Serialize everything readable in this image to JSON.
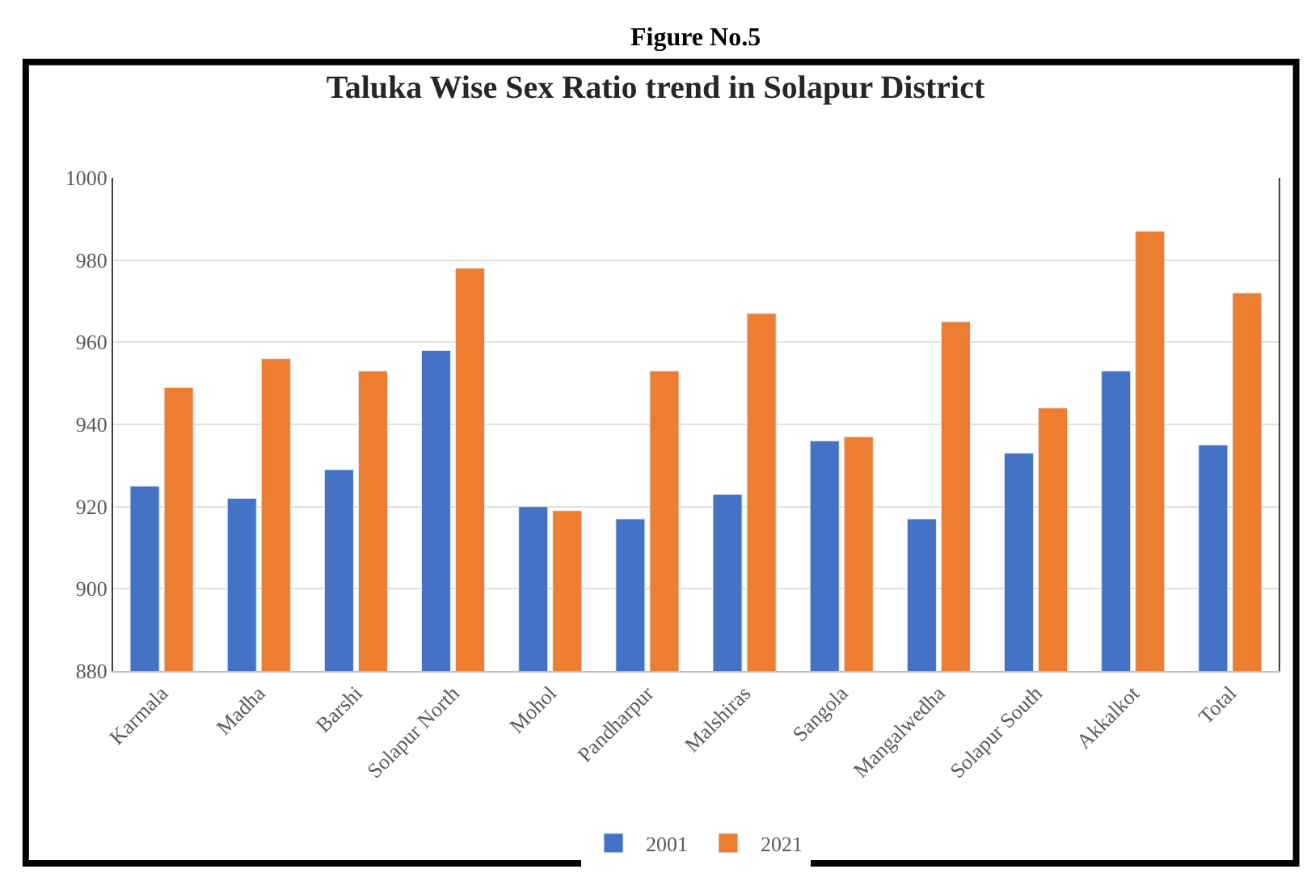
{
  "chart_data": {
    "type": "bar",
    "title": "Taluka Wise Sex Ratio trend in Solapur District",
    "annotations": [
      "Figure No.5"
    ],
    "categories": [
      "Karmala",
      "Madha",
      "Barshi",
      "Solapur North",
      "Mohol",
      "Pandharpur",
      "Malshiras",
      "Sangola",
      "Mangalwedha",
      "Solapur South",
      "Akkalkot",
      "Total"
    ],
    "series": [
      {
        "name": "2001",
        "color": "#4472c4",
        "values": [
          925,
          922,
          929,
          958,
          920,
          917,
          923,
          936,
          917,
          933,
          953,
          935
        ]
      },
      {
        "name": "2021",
        "color": "#ed7d31",
        "values": [
          949,
          956,
          953,
          978,
          919,
          953,
          967,
          937,
          965,
          944,
          987,
          972
        ]
      }
    ],
    "ylim": [
      880,
      1000
    ],
    "yticks": [
      880,
      900,
      920,
      940,
      960,
      980,
      1000
    ],
    "grid": "y",
    "legend": "bottom"
  }
}
